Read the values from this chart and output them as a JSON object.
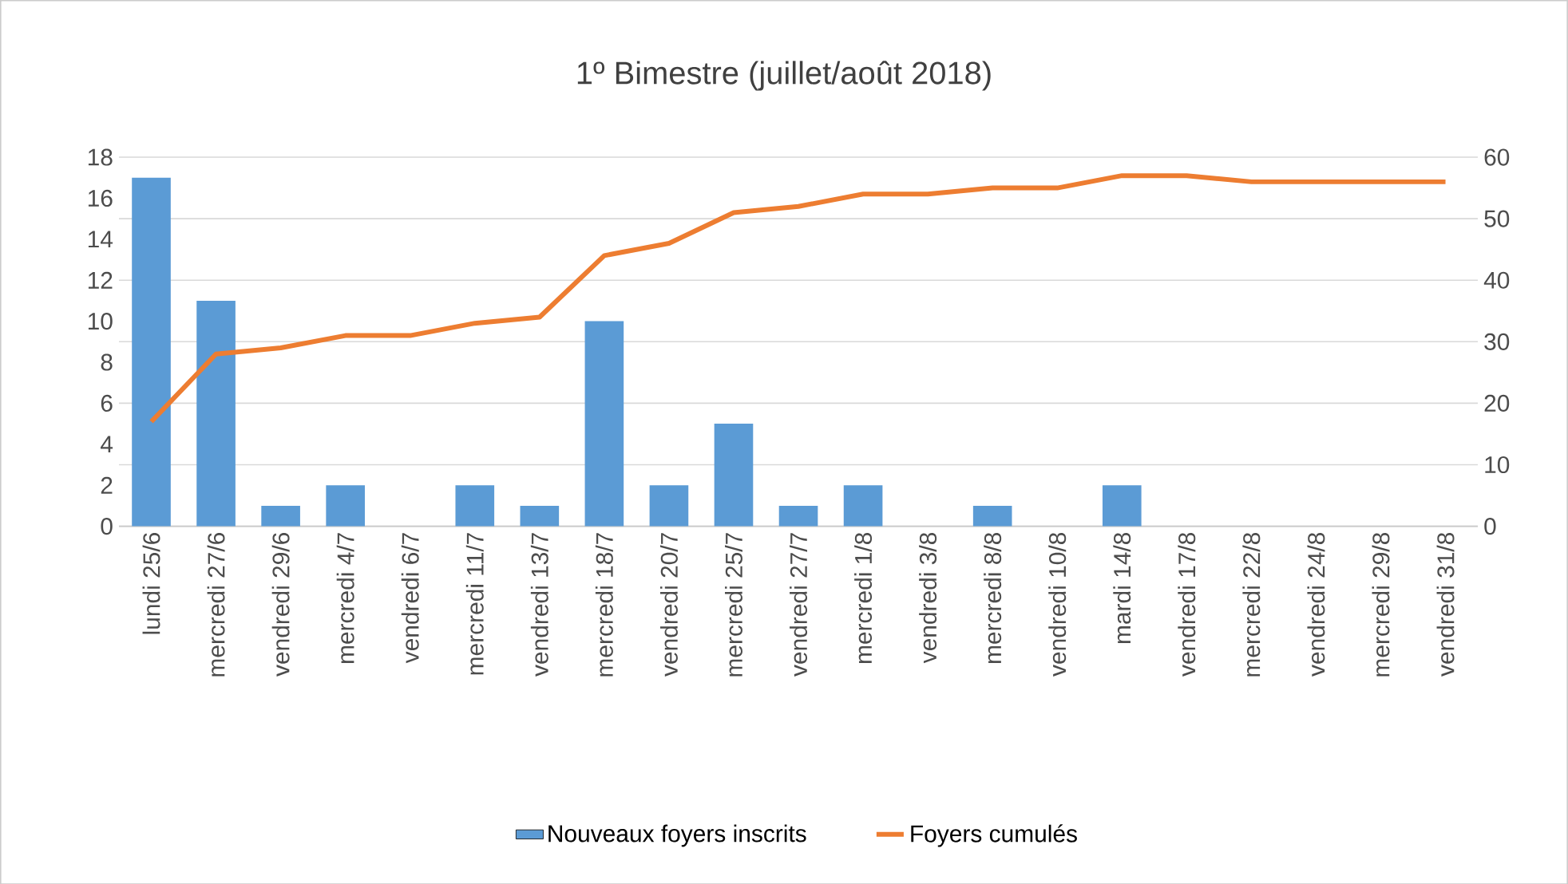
{
  "chart_data": {
    "type": "bar",
    "title": "1º Bimestre (juillet/août 2018)",
    "categories": [
      "lundi 25/6",
      "mercredi 27/6",
      "vendredi 29/6",
      "mercredi 4/7",
      "vendredi 6/7",
      "mercredi 11/7",
      "vendredi 13/7",
      "mercredi 18/7",
      "vendredi 20/7",
      "mercredi 25/7",
      "vendredi 27/7",
      "mercredi 1/8",
      "vendredi 3/8",
      "mercredi 8/8",
      "vendredi 10/8",
      "mardi 14/8",
      "vendredi 17/8",
      "mercredi 22/8",
      "vendredi 24/8",
      "mercredi 29/8",
      "vendredi 31/8"
    ],
    "series": [
      {
        "name": "Nouveaux foyers inscrits",
        "color": "#5b9bd5",
        "values": [
          17,
          11,
          1,
          2,
          0,
          2,
          1,
          10,
          2,
          5,
          1,
          2,
          0,
          1,
          0,
          2,
          0,
          null,
          0,
          0,
          0
        ]
      },
      {
        "name": "Foyers cumulés",
        "color": "#ed7d31",
        "type": "line",
        "axis": "y2",
        "values": [
          17,
          28,
          29,
          31,
          31,
          33,
          34,
          44,
          46,
          51,
          52,
          54,
          54,
          55,
          55,
          57,
          57,
          56,
          56,
          56,
          56
        ]
      }
    ],
    "ylim": [
      0,
      18
    ],
    "yticks": [
      0,
      2,
      4,
      6,
      8,
      10,
      12,
      14,
      16,
      18
    ],
    "y2lim": [
      0,
      60
    ],
    "y2ticks": [
      0,
      10,
      20,
      30,
      40,
      50,
      60
    ],
    "grid": "y",
    "legend": "bottom"
  }
}
